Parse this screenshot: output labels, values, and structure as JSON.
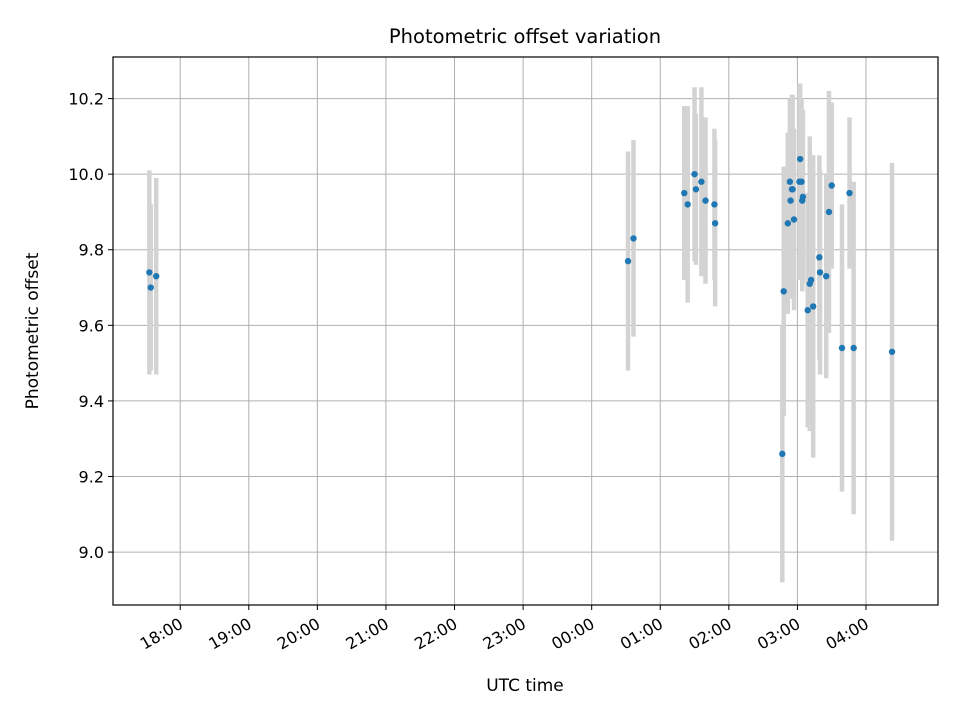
{
  "chart_data": {
    "type": "scatter",
    "title": "Photometric offset variation",
    "xlabel": "UTC time",
    "ylabel": "Photometric offset",
    "x_tick_labels": [
      "18:00",
      "19:00",
      "20:00",
      "21:00",
      "22:00",
      "23:00",
      "00:00",
      "01:00",
      "02:00",
      "03:00",
      "04:00"
    ],
    "y_tick_labels": [
      "9.0",
      "9.2",
      "9.4",
      "9.6",
      "9.8",
      "10.0",
      "10.2"
    ],
    "x_unit": "hours since 18:00 UTC",
    "xlim": [
      -0.98,
      11.05
    ],
    "ylim": [
      8.86,
      10.31
    ],
    "grid": true,
    "marker_color": "#1f77b4",
    "errorbar_color": "#d3d3d3",
    "points": [
      {
        "x": -0.45,
        "y": 9.74,
        "err": 0.27
      },
      {
        "x": -0.43,
        "y": 9.7,
        "err": 0.22
      },
      {
        "x": -0.35,
        "y": 9.73,
        "err": 0.26
      },
      {
        "x": 6.53,
        "y": 9.77,
        "err": 0.29
      },
      {
        "x": 6.61,
        "y": 9.83,
        "err": 0.26
      },
      {
        "x": 7.35,
        "y": 9.95,
        "err": 0.23
      },
      {
        "x": 7.4,
        "y": 9.92,
        "err": 0.26
      },
      {
        "x": 7.5,
        "y": 10.0,
        "err": 0.23
      },
      {
        "x": 7.52,
        "y": 9.96,
        "err": 0.2
      },
      {
        "x": 7.6,
        "y": 9.98,
        "err": 0.25
      },
      {
        "x": 7.66,
        "y": 9.93,
        "err": 0.22
      },
      {
        "x": 7.79,
        "y": 9.92,
        "err": 0.2
      },
      {
        "x": 7.8,
        "y": 9.87,
        "err": 0.22
      },
      {
        "x": 8.78,
        "y": 9.26,
        "err": 0.34
      },
      {
        "x": 8.8,
        "y": 9.69,
        "err": 0.33
      },
      {
        "x": 8.86,
        "y": 9.87,
        "err": 0.24
      },
      {
        "x": 8.89,
        "y": 9.98,
        "err": 0.22
      },
      {
        "x": 8.9,
        "y": 9.93,
        "err": 0.26
      },
      {
        "x": 8.92,
        "y": 9.96,
        "err": 0.25
      },
      {
        "x": 8.93,
        "y": 9.96,
        "err": 0.25
      },
      {
        "x": 8.95,
        "y": 9.88,
        "err": 0.24
      },
      {
        "x": 9.03,
        "y": 9.98,
        "err": 0.26
      },
      {
        "x": 9.04,
        "y": 10.04,
        "err": 0.2
      },
      {
        "x": 9.06,
        "y": 9.98,
        "err": 0.22
      },
      {
        "x": 9.07,
        "y": 9.93,
        "err": 0.24
      },
      {
        "x": 9.08,
        "y": 9.94,
        "err": 0.23
      },
      {
        "x": 9.15,
        "y": 9.64,
        "err": 0.31
      },
      {
        "x": 9.18,
        "y": 9.71,
        "err": 0.39
      },
      {
        "x": 9.2,
        "y": 9.72,
        "err": 0.33
      },
      {
        "x": 9.23,
        "y": 9.65,
        "err": 0.4
      },
      {
        "x": 9.32,
        "y": 9.78,
        "err": 0.27
      },
      {
        "x": 9.33,
        "y": 9.74,
        "err": 0.27
      },
      {
        "x": 9.42,
        "y": 9.73,
        "err": 0.27
      },
      {
        "x": 9.46,
        "y": 9.9,
        "err": 0.32
      },
      {
        "x": 9.5,
        "y": 9.97,
        "err": 0.22
      },
      {
        "x": 9.65,
        "y": 9.54,
        "err": 0.38
      },
      {
        "x": 9.76,
        "y": 9.95,
        "err": 0.2
      },
      {
        "x": 9.82,
        "y": 9.54,
        "err": 0.44
      },
      {
        "x": 10.38,
        "y": 9.53,
        "err": 0.5
      }
    ]
  }
}
